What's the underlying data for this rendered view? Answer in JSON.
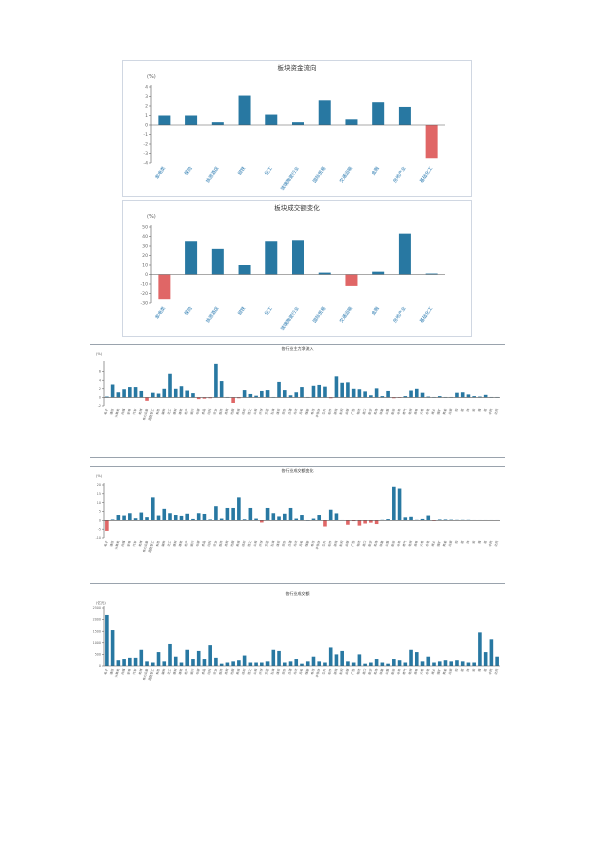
{
  "colors": {
    "positive": "#2878a2",
    "negative": "#e06666",
    "axis": "#555555"
  },
  "charts": [
    {
      "type": "bar",
      "title": "板块资金流向",
      "unit": "(%)",
      "ylim": [
        -4,
        4
      ],
      "yticks": [
        -4,
        -3,
        -2,
        -1,
        0,
        1,
        2,
        3,
        4
      ],
      "categories": [
        "家电类",
        "保险",
        "旅游酒店",
        "钢铁",
        "化工",
        "玻璃陶瓷行业",
        "国际贸易",
        "交通运输",
        "金融",
        "房地产业",
        "基础化工"
      ],
      "values": [
        1.0,
        1.0,
        0.3,
        3.1,
        1.1,
        0.3,
        2.6,
        0.6,
        2.4,
        1.9,
        -3.5
      ],
      "grid": false,
      "legend": "none"
    },
    {
      "type": "bar",
      "title": "板块成交额变化",
      "unit": "(%)",
      "ylim": [
        -30,
        50
      ],
      "yticks": [
        -30,
        -20,
        -10,
        0,
        10,
        20,
        30,
        40,
        50
      ],
      "categories": [
        "家电类",
        "保险",
        "旅游酒店",
        "钢铁",
        "化工",
        "玻璃陶瓷行业",
        "国际贸易",
        "交通运输",
        "金融",
        "房地产业",
        "基础化工"
      ],
      "values": [
        -26,
        35,
        27,
        10,
        35,
        36,
        2,
        -12,
        3,
        43,
        1
      ],
      "grid": false,
      "legend": "none"
    },
    {
      "type": "bar",
      "title": "各行业主力净流入",
      "unit": "(%)",
      "ylim": [
        -2,
        8
      ],
      "yticks": [
        -2,
        0,
        2,
        4,
        6
      ],
      "categories": [
        "电子",
        "通信",
        "计算机",
        "传媒",
        "家电",
        "汽车",
        "机械",
        "电力设备",
        "国防军工",
        "有色",
        "钢铁",
        "化工",
        "建材",
        "建筑",
        "地产",
        "银行",
        "非银",
        "食品",
        "饮料",
        "农业",
        "医药",
        "商贸",
        "社服",
        "美容",
        "纺织",
        "轻工",
        "公用",
        "环保",
        "交运",
        "石油",
        "煤炭",
        "综合",
        "白酒",
        "光伏",
        "风电",
        "储能",
        "电池",
        "半导体",
        "芯片",
        "软件",
        "游戏",
        "影视",
        "出版",
        "广告",
        "物流",
        "港口",
        "航空",
        "机场",
        "铁路",
        "公路",
        "航运",
        "水务",
        "燃气",
        "电网",
        "核电",
        "火电",
        "水电",
        "稀土",
        "锂矿",
        "黄金",
        "白银",
        "铜",
        "铝",
        "锌",
        "铅",
        "镍",
        "钴",
        "中药",
        "化药"
      ],
      "values": [
        0.2,
        3.0,
        1.2,
        1.9,
        2.4,
        2.4,
        1.5,
        -0.8,
        1.1,
        0.9,
        2.0,
        5.5,
        2.0,
        2.6,
        1.6,
        1.0,
        -0.4,
        -0.3,
        -0.2,
        7.8,
        3.8,
        0.1,
        -1.3,
        -0.2,
        1.7,
        0.8,
        0.4,
        1.5,
        1.7,
        0.1,
        3.6,
        1.7,
        0.5,
        1.2,
        2.4,
        0.1,
        2.7,
        2.9,
        2.5,
        -0.2,
        4.9,
        3.4,
        3.5,
        2.0,
        1.9,
        1.4,
        0.5,
        2.1,
        0.3,
        1.5,
        -0.2,
        -0.1,
        0.3,
        1.6,
        2.0,
        1.1,
        0.2,
        0.1,
        0.3,
        0.1,
        0.1,
        1.1,
        1.2,
        0.7,
        0.3,
        0.2,
        0.6,
        0.1,
        0.1
      ],
      "grid": false,
      "legend": "none"
    },
    {
      "type": "bar",
      "title": "各行业成交额变化",
      "unit": "(%)",
      "ylim": [
        -10,
        20
      ],
      "yticks": [
        -10,
        -5,
        0,
        5,
        10,
        15,
        20
      ],
      "categories": [
        "电子",
        "通信",
        "计算机",
        "传媒",
        "家电",
        "汽车",
        "机械",
        "电力设备",
        "国防军工",
        "有色",
        "钢铁",
        "化工",
        "建材",
        "建筑",
        "地产",
        "银行",
        "非银",
        "食品",
        "饮料",
        "农业",
        "医药",
        "商贸",
        "社服",
        "美容",
        "纺织",
        "轻工",
        "公用",
        "环保",
        "交运",
        "石油",
        "煤炭",
        "综合",
        "白酒",
        "光伏",
        "风电",
        "储能",
        "电池",
        "半导体",
        "芯片",
        "软件",
        "游戏",
        "影视",
        "出版",
        "广告",
        "物流",
        "港口",
        "航空",
        "机场",
        "铁路",
        "公路",
        "航运",
        "水务",
        "燃气",
        "电网",
        "核电",
        "火电",
        "水电",
        "稀土",
        "锂矿",
        "黄金",
        "白银",
        "铜",
        "铝",
        "锌",
        "铅",
        "镍",
        "钴",
        "中药",
        "化药"
      ],
      "values": [
        -6,
        0.5,
        3,
        2.7,
        4,
        1.2,
        4.4,
        1.8,
        13,
        2.7,
        6.5,
        4,
        3,
        2.5,
        3.7,
        0.8,
        4,
        3.6,
        0.5,
        8,
        1,
        7,
        7,
        13,
        0.6,
        7,
        1,
        -1.2,
        7,
        4,
        2.2,
        3.7,
        7,
        1,
        3,
        0.1,
        1,
        3,
        -3.5,
        6,
        3.9,
        0.2,
        -2.5,
        -0.4,
        -3,
        -1.8,
        -1.3,
        -2.1,
        0.3,
        0.7,
        19,
        18,
        1.7,
        2,
        0.3,
        0.8,
        2.7,
        -0.3,
        0.5,
        0.5,
        0.4,
        0.3,
        0.3,
        0.3,
        0.2,
        0.2,
        0.2,
        0.2,
        0.2
      ],
      "grid": false,
      "legend": "none"
    },
    {
      "type": "bar",
      "title": "各行业成交额",
      "unit": "(亿元)",
      "ylim": [
        0,
        2500
      ],
      "yticks": [
        0,
        500,
        1000,
        1500,
        2000,
        2500
      ],
      "categories": [
        "电子",
        "通信",
        "计算机",
        "传媒",
        "家电",
        "汽车",
        "机械",
        "电力设备",
        "国防军工",
        "有色",
        "钢铁",
        "化工",
        "建材",
        "建筑",
        "地产",
        "银行",
        "非银",
        "食品",
        "饮料",
        "农业",
        "医药",
        "商贸",
        "社服",
        "美容",
        "纺织",
        "轻工",
        "公用",
        "环保",
        "交运",
        "石油",
        "煤炭",
        "综合",
        "白酒",
        "光伏",
        "风电",
        "储能",
        "电池",
        "半导体",
        "芯片",
        "软件",
        "游戏",
        "影视",
        "出版",
        "广告",
        "物流",
        "港口",
        "航空",
        "机场",
        "铁路",
        "公路",
        "航运",
        "水务",
        "燃气",
        "电网",
        "核电",
        "火电",
        "水电",
        "稀土",
        "锂矿",
        "黄金",
        "白银",
        "铜",
        "铝",
        "锌",
        "铅",
        "镍",
        "钴",
        "中药",
        "化药"
      ],
      "values": [
        2200,
        1550,
        250,
        300,
        350,
        350,
        700,
        200,
        150,
        600,
        200,
        950,
        400,
        150,
        700,
        300,
        650,
        300,
        900,
        350,
        100,
        150,
        200,
        250,
        450,
        150,
        150,
        150,
        200,
        700,
        650,
        150,
        200,
        300,
        100,
        200,
        400,
        200,
        150,
        800,
        500,
        650,
        200,
        150,
        500,
        100,
        150,
        300,
        150,
        100,
        300,
        250,
        150,
        700,
        600,
        200,
        400,
        150,
        200,
        250,
        200,
        250,
        200,
        150,
        150,
        1450,
        600,
        1150,
        400
      ],
      "grid": false,
      "legend": "none"
    }
  ]
}
